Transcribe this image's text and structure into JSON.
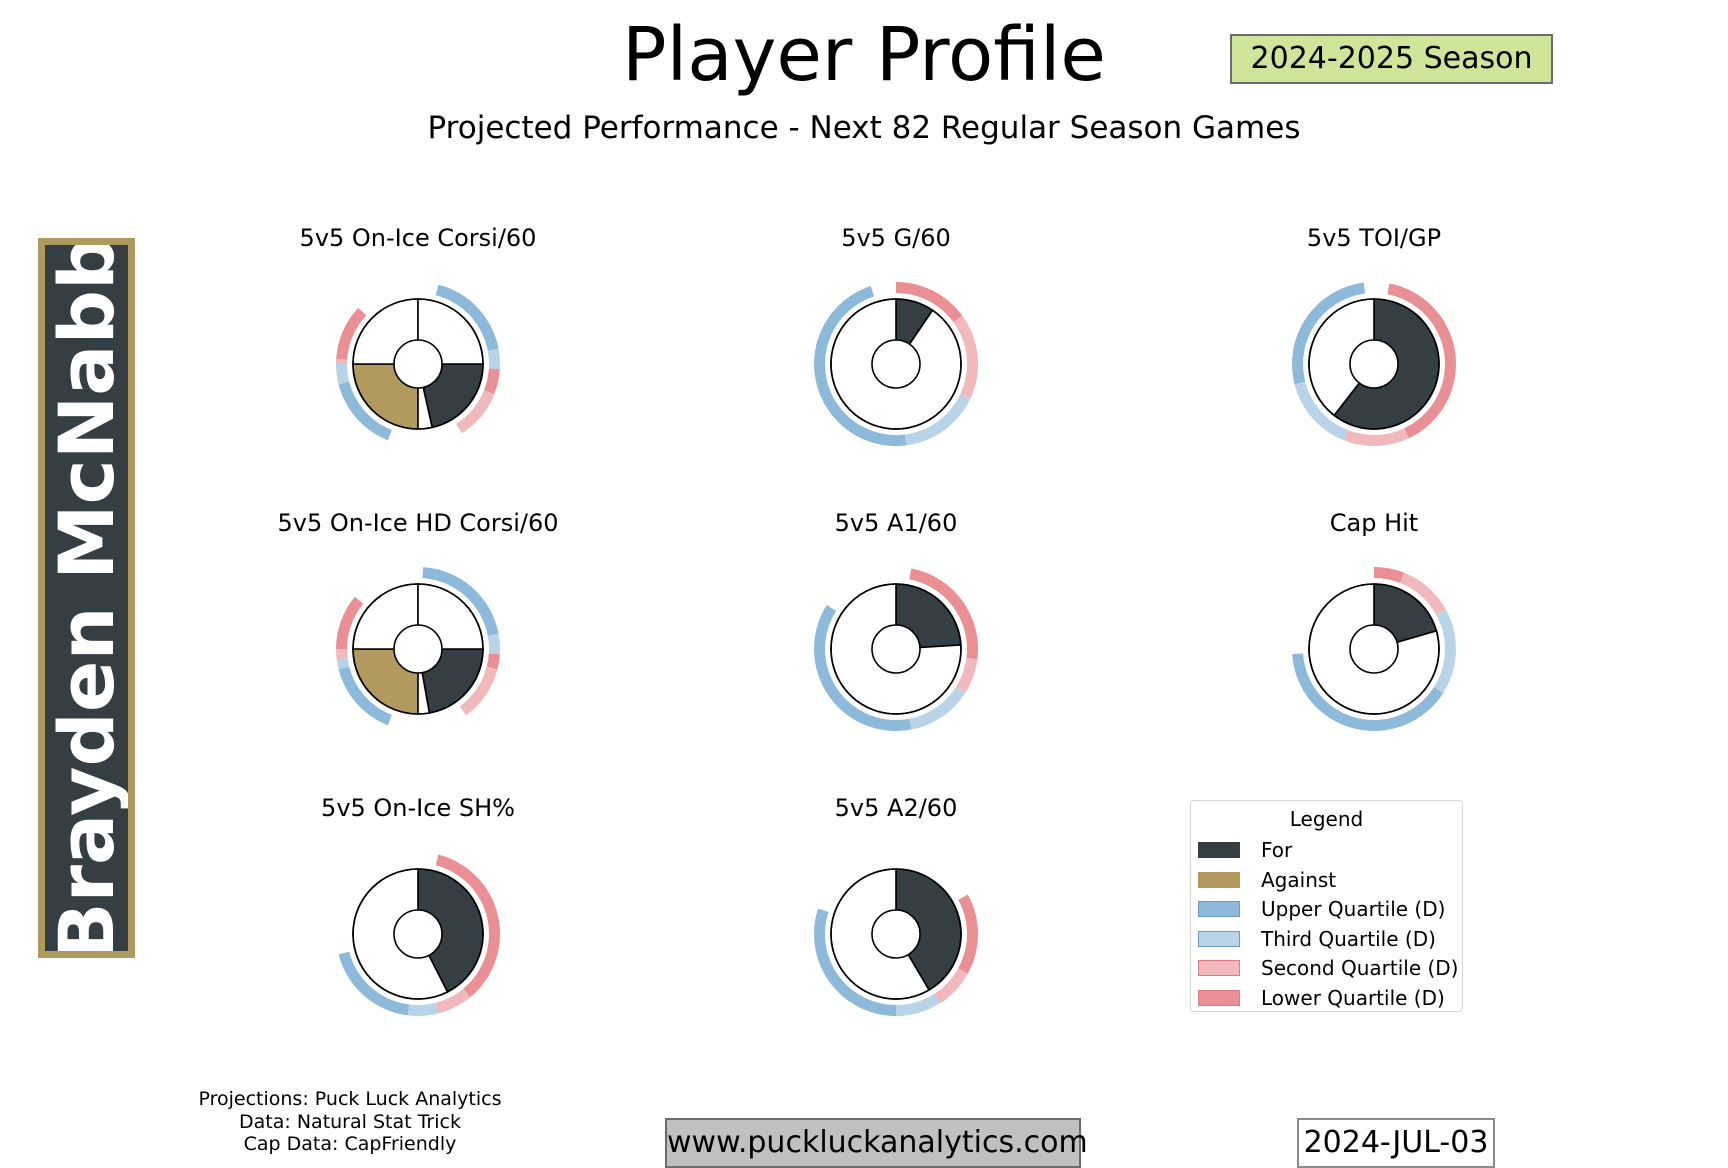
{
  "header": {
    "title": "Player Profile",
    "subtitle": "Projected Performance - Next 82 Regular Season Games",
    "season": "2024-2025 Season"
  },
  "player": {
    "name": "Brayden McNabb"
  },
  "colors": {
    "for": "#343e43",
    "against": "#b29a5f",
    "upper_quartile": "#8db9da",
    "third_quartile": "#b9d4e8",
    "second_quartile": "#f2b9bc",
    "lower_quartile": "#ea8f94",
    "season_badge": "#cfe69a",
    "name_border": "#ae9a5e"
  },
  "legend": {
    "title": "Legend",
    "items": [
      {
        "label": "For",
        "color": "#343e43"
      },
      {
        "label": "Against",
        "color": "#b29a5f"
      },
      {
        "label": "Upper Quartile (D)",
        "color": "#8db9da"
      },
      {
        "label": "Third Quartile (D)",
        "color": "#b9d4e8"
      },
      {
        "label": "Second Quartile (D)",
        "color": "#f2b9bc"
      },
      {
        "label": "Lower Quartile (D)",
        "color": "#ea8f94"
      }
    ]
  },
  "chart_data": [
    {
      "type": "pie",
      "title": "5v5 On-Ice Corsi/60",
      "variant": "split",
      "for_share": 0.215,
      "against_share": 0.25,
      "quartiles_for": [
        {
          "q": "upper",
          "start": 0.04,
          "end": 0.22
        },
        {
          "q": "third",
          "start": 0.22,
          "end": 0.26
        },
        {
          "q": "lower",
          "start": 0.26,
          "end": 0.31
        },
        {
          "q": "second",
          "start": 0.31,
          "end": 0.41
        }
      ],
      "quartiles_against": [
        {
          "q": "upper",
          "start": 0.56,
          "end": 0.71
        },
        {
          "q": "third",
          "start": 0.71,
          "end": 0.75
        },
        {
          "q": "second",
          "start": 0.75,
          "end": 0.76
        },
        {
          "q": "lower",
          "start": 0.76,
          "end": 0.87
        }
      ]
    },
    {
      "type": "pie",
      "title": "5v5 G/60",
      "variant": "single",
      "for_share": 0.095,
      "quartiles": [
        {
          "q": "lower",
          "start": 0.0,
          "end": 0.15
        },
        {
          "q": "second",
          "start": 0.15,
          "end": 0.32
        },
        {
          "q": "third",
          "start": 0.32,
          "end": 0.48
        },
        {
          "q": "upper",
          "start": 0.48,
          "end": 0.95
        }
      ]
    },
    {
      "type": "pie",
      "title": "5v5 TOI/GP",
      "variant": "single",
      "for_share": 0.605,
      "quartiles": [
        {
          "q": "lower",
          "start": 0.03,
          "end": 0.43
        },
        {
          "q": "second",
          "start": 0.43,
          "end": 0.56
        },
        {
          "q": "third",
          "start": 0.56,
          "end": 0.71
        },
        {
          "q": "upper",
          "start": 0.71,
          "end": 0.98
        }
      ]
    },
    {
      "type": "pie",
      "title": "5v5 On-Ice HD Corsi/60",
      "variant": "split",
      "for_share": 0.222,
      "against_share": 0.25,
      "quartiles_for": [
        {
          "q": "upper",
          "start": 0.01,
          "end": 0.22
        },
        {
          "q": "third",
          "start": 0.22,
          "end": 0.26
        },
        {
          "q": "lower",
          "start": 0.26,
          "end": 0.29
        },
        {
          "q": "second",
          "start": 0.29,
          "end": 0.4
        }
      ],
      "quartiles_against": [
        {
          "q": "upper",
          "start": 0.56,
          "end": 0.71
        },
        {
          "q": "third",
          "start": 0.71,
          "end": 0.73
        },
        {
          "q": "second",
          "start": 0.73,
          "end": 0.75
        },
        {
          "q": "lower",
          "start": 0.75,
          "end": 0.86
        }
      ]
    },
    {
      "type": "pie",
      "title": "5v5 A1/60",
      "variant": "single",
      "for_share": 0.24,
      "quartiles": [
        {
          "q": "lower",
          "start": 0.03,
          "end": 0.27
        },
        {
          "q": "second",
          "start": 0.27,
          "end": 0.34
        },
        {
          "q": "third",
          "start": 0.34,
          "end": 0.47
        },
        {
          "q": "upper",
          "start": 0.47,
          "end": 0.84
        }
      ]
    },
    {
      "type": "pie",
      "title": "Cap Hit",
      "variant": "single",
      "for_share": 0.205,
      "quartiles": [
        {
          "q": "lower",
          "start": 0.0,
          "end": 0.06
        },
        {
          "q": "second",
          "start": 0.06,
          "end": 0.17
        },
        {
          "q": "third",
          "start": 0.17,
          "end": 0.34
        },
        {
          "q": "upper",
          "start": 0.34,
          "end": 0.74
        }
      ]
    },
    {
      "type": "pie",
      "title": "5v5 On-Ice SH%",
      "variant": "single",
      "for_share": 0.425,
      "quartiles": [
        {
          "q": "lower",
          "start": 0.04,
          "end": 0.39
        },
        {
          "q": "second",
          "start": 0.39,
          "end": 0.46
        },
        {
          "q": "third",
          "start": 0.46,
          "end": 0.52
        },
        {
          "q": "upper",
          "start": 0.52,
          "end": 0.71
        }
      ]
    },
    {
      "type": "pie",
      "title": "5v5 A2/60",
      "variant": "single",
      "for_share": 0.415,
      "quartiles": [
        {
          "q": "lower",
          "start": 0.17,
          "end": 0.33
        },
        {
          "q": "second",
          "start": 0.33,
          "end": 0.41
        },
        {
          "q": "third",
          "start": 0.41,
          "end": 0.5
        },
        {
          "q": "upper",
          "start": 0.5,
          "end": 0.8
        }
      ]
    }
  ],
  "footer": {
    "credits": [
      "Projections: Puck Luck Analytics",
      "Data: Natural Stat Trick",
      "Cap Data: CapFriendly"
    ],
    "website": "www.puckluckanalytics.com",
    "date": "2024-JUL-03"
  }
}
